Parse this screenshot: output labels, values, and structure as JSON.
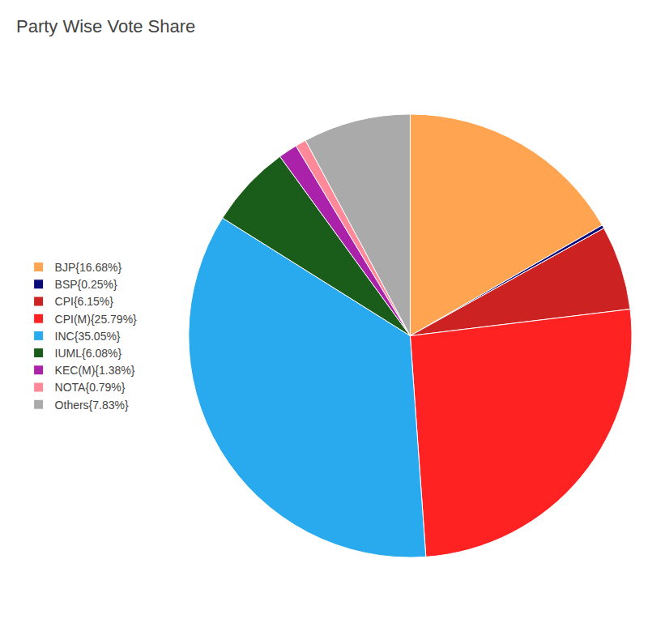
{
  "chart_data": {
    "type": "pie",
    "title": "Party Wise Vote Share",
    "categories": [
      "BJP{16.68%}",
      "BSP{0.25%}",
      "CPI{6.15%}",
      "CPI(M){25.79%}",
      "INC{35.05%}",
      "IUML{6.08%}",
      "KEC(M){1.38%}",
      "NOTA{0.79%}",
      "Others{7.83%}"
    ],
    "values": [
      16.68,
      0.25,
      6.15,
      25.79,
      35.05,
      6.08,
      1.38,
      0.79,
      7.83
    ],
    "colors": [
      "#FFA552",
      "#0a0a7a",
      "#cc2222",
      "#ff2222",
      "#29aaee",
      "#1a5c1a",
      "#aa22aa",
      "#ff8899",
      "#aaaaaa"
    ],
    "legend": "left"
  }
}
